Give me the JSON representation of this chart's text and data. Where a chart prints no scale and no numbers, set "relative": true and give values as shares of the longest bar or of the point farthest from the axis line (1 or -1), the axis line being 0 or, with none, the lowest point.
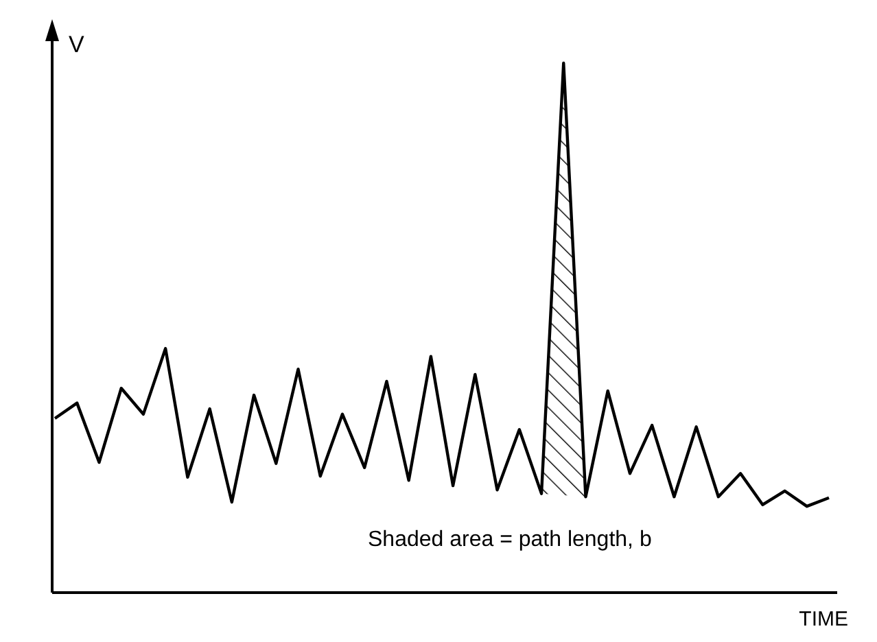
{
  "chart_data": {
    "type": "line",
    "xlabel": "TIME",
    "ylabel": "V",
    "relative": true,
    "annotations": [
      "Shaded area = path length, b"
    ],
    "categories": [
      null,
      null,
      null,
      null,
      null,
      null,
      null,
      null,
      null,
      null,
      null,
      null,
      null,
      null,
      null,
      null,
      null,
      null,
      null,
      null,
      null,
      null,
      null,
      null,
      null,
      null,
      null,
      null,
      null,
      null,
      null,
      null,
      null,
      null,
      null,
      null
    ],
    "series": [
      {
        "color": "#000000",
        "values": [
          0.329,
          0.358,
          0.246,
          0.386,
          0.337,
          0.461,
          0.218,
          0.347,
          0.171,
          0.373,
          0.244,
          0.422,
          0.22,
          0.337,
          0.236,
          0.399,
          0.212,
          0.446,
          0.202,
          0.412,
          0.194,
          0.308,
          0.187,
          1,
          0.181,
          0.381,
          0.225,
          0.316,
          0.181,
          0.313,
          0.181,
          0.225,
          0.166,
          0.192,
          0.163,
          0.179
        ]
      }
    ]
  }
}
